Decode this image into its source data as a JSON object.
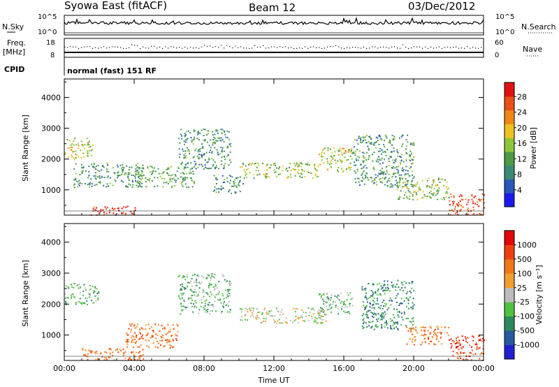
{
  "title": {
    "station": "Syowa East (fitACF)",
    "beam": "Beam 12",
    "date": "03/Dec/2012"
  },
  "summary": {
    "nsky_label": "N.Sky",
    "nsearch_label": "N.Search",
    "freq_label": "Freq.",
    "freq_unit": "[MHz]",
    "nave_label": "Nave",
    "cpid_label": "CPID",
    "cpid_value": "normal (fast) 151 RF",
    "noise_ticks": [
      "10^5",
      "10^0"
    ],
    "freq_ticks": [
      "18",
      "8"
    ],
    "nave_ticks": [
      "60",
      "0"
    ],
    "freq_mhz_approx": 10.2
  },
  "chart_data": [
    {
      "type": "heatmap",
      "name": "power",
      "ylabel": "Slant Range [km]",
      "xlabel": "",
      "x_ticks": [
        "00:00",
        "04:00",
        "08:00",
        "12:00",
        "16:00",
        "20:00",
        "00:00"
      ],
      "y_ticks": [
        "1000",
        "2000",
        "3000",
        "4000"
      ],
      "xlim_hours": [
        0,
        24
      ],
      "ylim_km": [
        180,
        4600
      ],
      "colorbar": {
        "label": "Power [dB]",
        "ticks": [
          "4",
          "8",
          "12",
          "16",
          "20",
          "24",
          "28"
        ],
        "range": [
          0,
          30
        ],
        "colors": [
          "#1a1af0",
          "#2a58b8",
          "#3a8a78",
          "#4c9a48",
          "#8dc63a",
          "#f0c020",
          "#f08818",
          "#e85018",
          "#e01010"
        ]
      },
      "features": [
        {
          "hours": [
            0.0,
            1.6
          ],
          "km": [
            2000,
            2700
          ],
          "level": 16
        },
        {
          "hours": [
            0.5,
            4.5
          ],
          "km": [
            1100,
            1900
          ],
          "level": 10
        },
        {
          "hours": [
            1.5,
            4.2
          ],
          "km": [
            200,
            500
          ],
          "level": 28
        },
        {
          "hours": [
            4.0,
            7.5
          ],
          "km": [
            1100,
            1800
          ],
          "level": 12
        },
        {
          "hours": [
            6.5,
            9.5
          ],
          "km": [
            1700,
            3000
          ],
          "level": 10
        },
        {
          "hours": [
            8.5,
            10.2
          ],
          "km": [
            900,
            1500
          ],
          "level": 10
        },
        {
          "hours": [
            10.0,
            14.5
          ],
          "km": [
            1400,
            1900
          ],
          "level": 14
        },
        {
          "hours": [
            14.5,
            16.5
          ],
          "km": [
            1600,
            2400
          ],
          "level": 16
        },
        {
          "hours": [
            16.5,
            20.0
          ],
          "km": [
            1100,
            2800
          ],
          "level": 10
        },
        {
          "hours": [
            19.0,
            22.0
          ],
          "km": [
            700,
            1400
          ],
          "level": 14
        },
        {
          "hours": [
            22.0,
            24.0
          ],
          "km": [
            200,
            900
          ],
          "level": 26
        }
      ]
    },
    {
      "type": "heatmap",
      "name": "velocity",
      "ylabel": "Slant Range [km]",
      "xlabel": "Time UT",
      "x_ticks": [
        "00:00",
        "04:00",
        "08:00",
        "12:00",
        "16:00",
        "20:00",
        "00:00"
      ],
      "y_ticks": [
        "1000",
        "2000",
        "3000",
        "4000"
      ],
      "xlim_hours": [
        0,
        24
      ],
      "ylim_km": [
        180,
        4600
      ],
      "colorbar": {
        "label": "Velocity [m s⁻¹]",
        "ticks": [
          "1000",
          "500",
          "100",
          "25",
          "-25",
          "-100",
          "-500",
          "-1000"
        ],
        "colors": [
          "#2020d0",
          "#285aa0",
          "#2c8a5c",
          "#50c040",
          "#bcbcbc",
          "#f0a030",
          "#f07818",
          "#f04010",
          "#e00808"
        ]
      },
      "features": [
        {
          "hours": [
            0.0,
            2.0
          ],
          "km": [
            2000,
            2700
          ],
          "level": "25"
        },
        {
          "hours": [
            1.0,
            4.5
          ],
          "km": [
            200,
            600
          ],
          "level": "-500"
        },
        {
          "hours": [
            3.5,
            6.5
          ],
          "km": [
            600,
            1400
          ],
          "level": "-500"
        },
        {
          "hours": [
            6.5,
            9.5
          ],
          "km": [
            1700,
            3000
          ],
          "level": "25"
        },
        {
          "hours": [
            10.0,
            15.0
          ],
          "km": [
            1400,
            1900
          ],
          "level": "-25"
        },
        {
          "hours": [
            14.5,
            16.5
          ],
          "km": [
            1700,
            2400
          ],
          "level": "25"
        },
        {
          "hours": [
            17.0,
            20.0
          ],
          "km": [
            1200,
            2800
          ],
          "level": "100"
        },
        {
          "hours": [
            19.5,
            22.0
          ],
          "km": [
            700,
            1300
          ],
          "level": "-500"
        },
        {
          "hours": [
            22.0,
            24.0
          ],
          "km": [
            200,
            1000
          ],
          "level": "-1000"
        }
      ]
    }
  ]
}
